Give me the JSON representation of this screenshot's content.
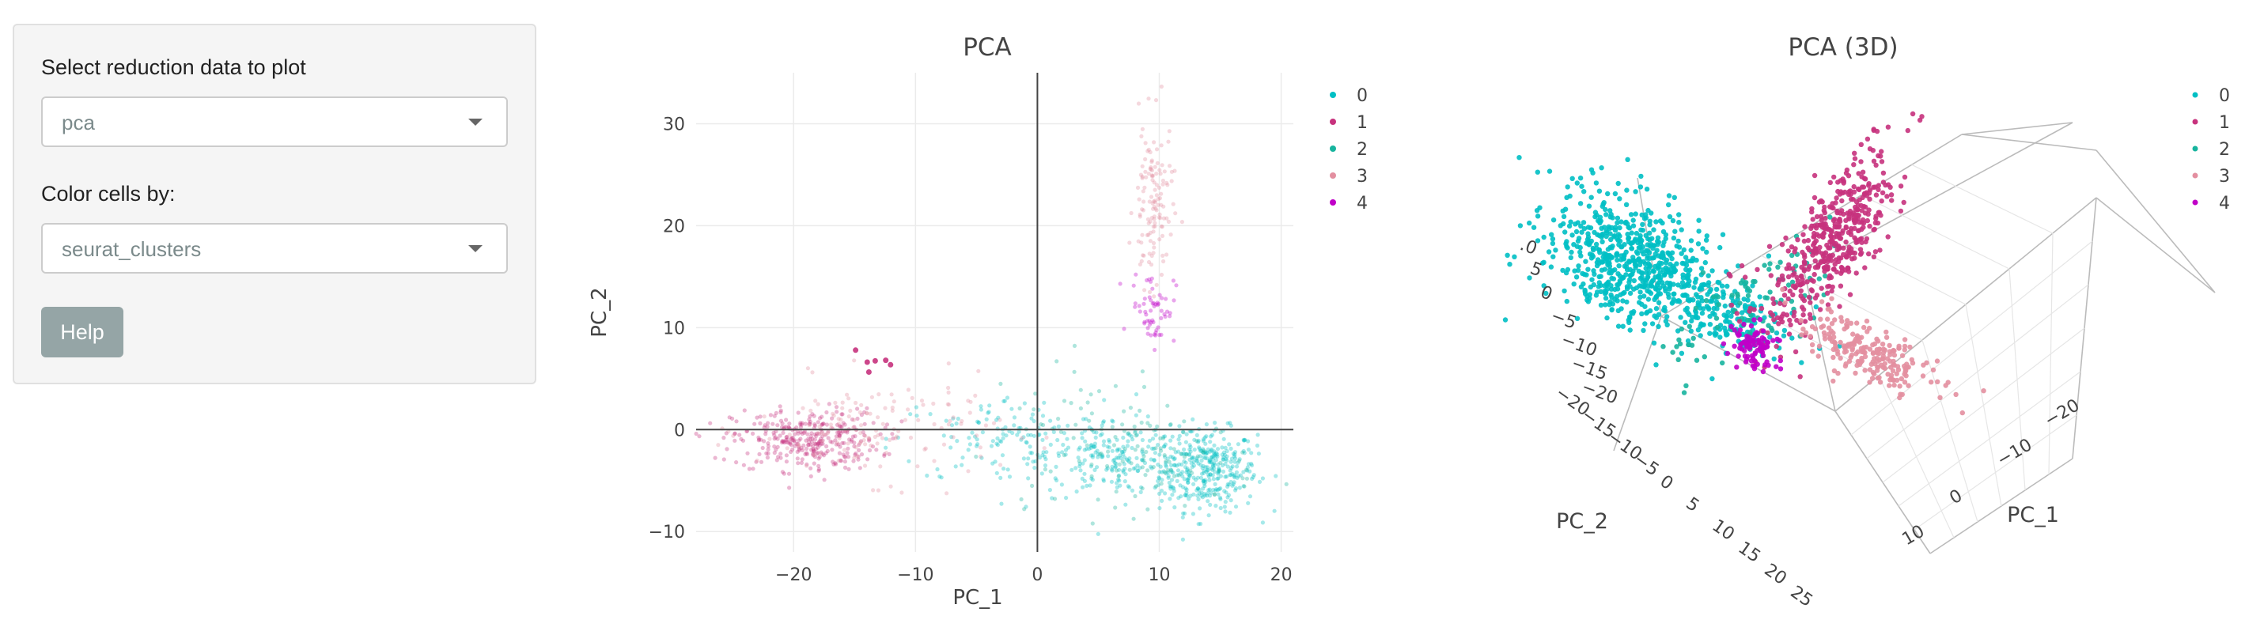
{
  "sidebar": {
    "reduction_label": "Select reduction data to plot",
    "reduction_value": "pca",
    "color_label": "Color cells by:",
    "color_value": "seurat_clusters",
    "help_label": "Help"
  },
  "colors": {
    "cluster_0": "#00BFC4",
    "cluster_1": "#C7327D",
    "cluster_2": "#17B49E",
    "cluster_3": "#E38FA0",
    "cluster_4": "#C000C8"
  },
  "chart_data": [
    {
      "type": "scatter",
      "title": "PCA",
      "xlabel": "PC_1",
      "ylabel": "PC_2",
      "xlim": [
        -28,
        21
      ],
      "ylim": [
        -12,
        35
      ],
      "x_ticks": [
        -20,
        -10,
        0,
        10,
        20
      ],
      "y_ticks": [
        -10,
        0,
        10,
        20,
        30
      ],
      "grid": true,
      "legend_position": "top-right",
      "series": [
        {
          "name": "0",
          "clouds": [
            {
              "cx": 14,
              "cy": -4,
              "sx": 2.0,
              "sy": 2.0,
              "n": 340
            },
            {
              "cx": 7,
              "cy": -3,
              "sx": 3.5,
              "sy": 1.8,
              "n": 200
            },
            {
              "cx": -2,
              "cy": -1,
              "sx": 5.0,
              "sy": 2.2,
              "n": 140
            }
          ]
        },
        {
          "name": "1",
          "clouds": [
            {
              "cx": -19,
              "cy": -1,
              "sx": 3.0,
              "sy": 1.5,
              "n": 330
            },
            {
              "cx": -13,
              "cy": 6,
              "sx": 1.2,
              "sy": 0.8,
              "n": 6
            }
          ]
        },
        {
          "name": "2",
          "clouds": [
            {
              "cx": 10,
              "cy": -3,
              "sx": 4.0,
              "sy": 2.2,
              "n": 90
            },
            {
              "cx": 4,
              "cy": 1,
              "sx": 4.0,
              "sy": 3.0,
              "n": 40
            }
          ]
        },
        {
          "name": "3",
          "clouds": [
            {
              "cx": -13,
              "cy": 0,
              "sx": 5.0,
              "sy": 2.5,
              "n": 140
            },
            {
              "cx": 9.5,
              "cy": 22,
              "sx": 0.8,
              "sy": 4.0,
              "n": 130
            }
          ]
        },
        {
          "name": "4",
          "clouds": [
            {
              "cx": 9.5,
              "cy": 12,
              "sx": 0.9,
              "sy": 1.8,
              "n": 60
            }
          ]
        }
      ]
    },
    {
      "type": "scatter",
      "title": "PCA (3D)",
      "xlabel": "PC_1",
      "ylabel": "PC_2",
      "legend_position": "top-right",
      "series": [
        {
          "name": "0"
        },
        {
          "name": "1"
        },
        {
          "name": "2"
        },
        {
          "name": "3"
        },
        {
          "name": "4"
        }
      ],
      "tick_labels_pc1": [
        "-20",
        "-10",
        "0",
        "10"
      ],
      "tick_labels_pc2": [
        "-20",
        "-15",
        "-10",
        "-5",
        "0",
        "5",
        "10",
        "15",
        "20",
        "25"
      ],
      "tick_labels_pc3": [
        ".0",
        "5",
        "0",
        "-5",
        "-10",
        "-15",
        "-20"
      ]
    }
  ]
}
